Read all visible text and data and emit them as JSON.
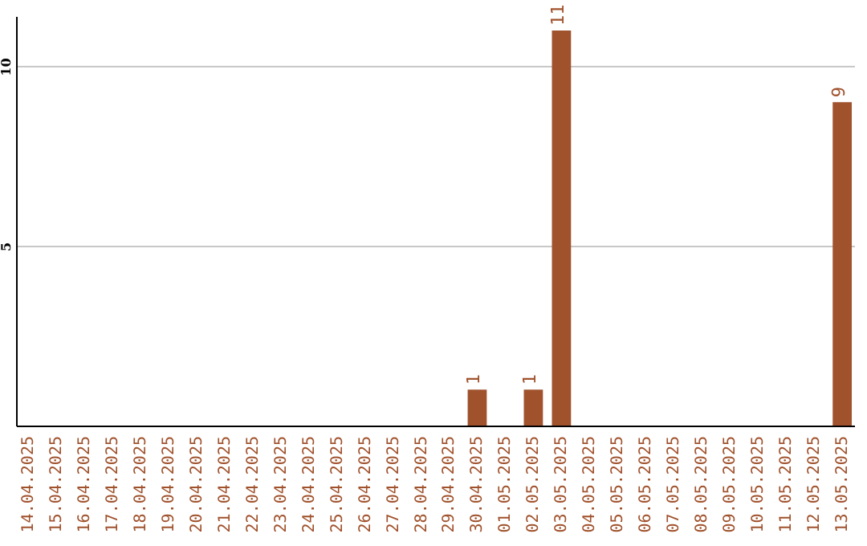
{
  "chart_data": {
    "type": "bar",
    "categories": [
      "14.04.2025",
      "15.04.2025",
      "16.04.2025",
      "17.04.2025",
      "18.04.2025",
      "19.04.2025",
      "20.04.2025",
      "21.04.2025",
      "22.04.2025",
      "23.04.2025",
      "24.04.2025",
      "25.04.2025",
      "26.04.2025",
      "27.04.2025",
      "28.04.2025",
      "29.04.2025",
      "30.04.2025",
      "01.05.2025",
      "02.05.2025",
      "03.05.2025",
      "04.05.2025",
      "05.05.2025",
      "06.05.2025",
      "07.05.2025",
      "08.05.2025",
      "09.05.2025",
      "10.05.2025",
      "11.05.2025",
      "12.05.2025",
      "13.05.2025"
    ],
    "values": [
      0,
      0,
      0,
      0,
      0,
      0,
      0,
      0,
      0,
      0,
      0,
      0,
      0,
      0,
      0,
      0,
      1,
      0,
      1,
      11,
      0,
      0,
      0,
      0,
      0,
      0,
      0,
      0,
      0,
      9
    ],
    "value_labels": [
      null,
      null,
      null,
      null,
      null,
      null,
      null,
      null,
      null,
      null,
      null,
      null,
      null,
      null,
      null,
      null,
      "1",
      null,
      "1",
      "11",
      null,
      null,
      null,
      null,
      null,
      null,
      null,
      null,
      null,
      "9"
    ],
    "color": "#a0522d",
    "ylim": [
      0,
      11.4
    ],
    "yticks": [
      5,
      10
    ],
    "grid": true
  }
}
